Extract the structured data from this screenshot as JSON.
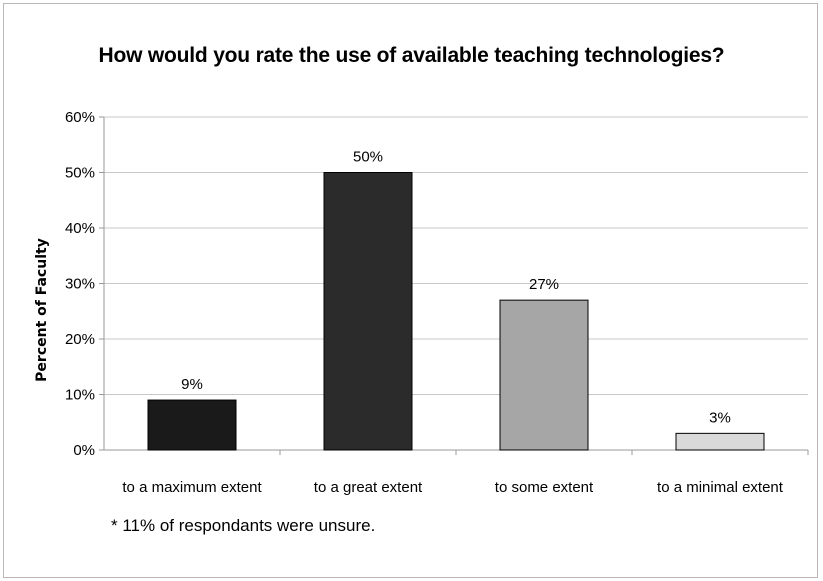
{
  "chart_data": {
    "type": "bar",
    "title": "How would you rate the use of available teaching technologies?",
    "ylabel": "Percent  of Faculty",
    "xlabel": "",
    "categories": [
      "to a maximum extent",
      "to a great extent",
      "to some extent",
      "to a minimal extent"
    ],
    "values": [
      9,
      50,
      27,
      3
    ],
    "data_labels": [
      "9%",
      "50%",
      "27%",
      "3%"
    ],
    "y_ticks": [
      "0%",
      "10%",
      "20%",
      "30%",
      "40%",
      "50%",
      "60%"
    ],
    "ylim": [
      0,
      60
    ],
    "bar_colors": [
      "#1a1a1a",
      "#2b2b2b",
      "#a6a6a6",
      "#d9d9d9"
    ],
    "grid": true,
    "legend": "none"
  },
  "footnote": "* 11% of respondants were unsure."
}
